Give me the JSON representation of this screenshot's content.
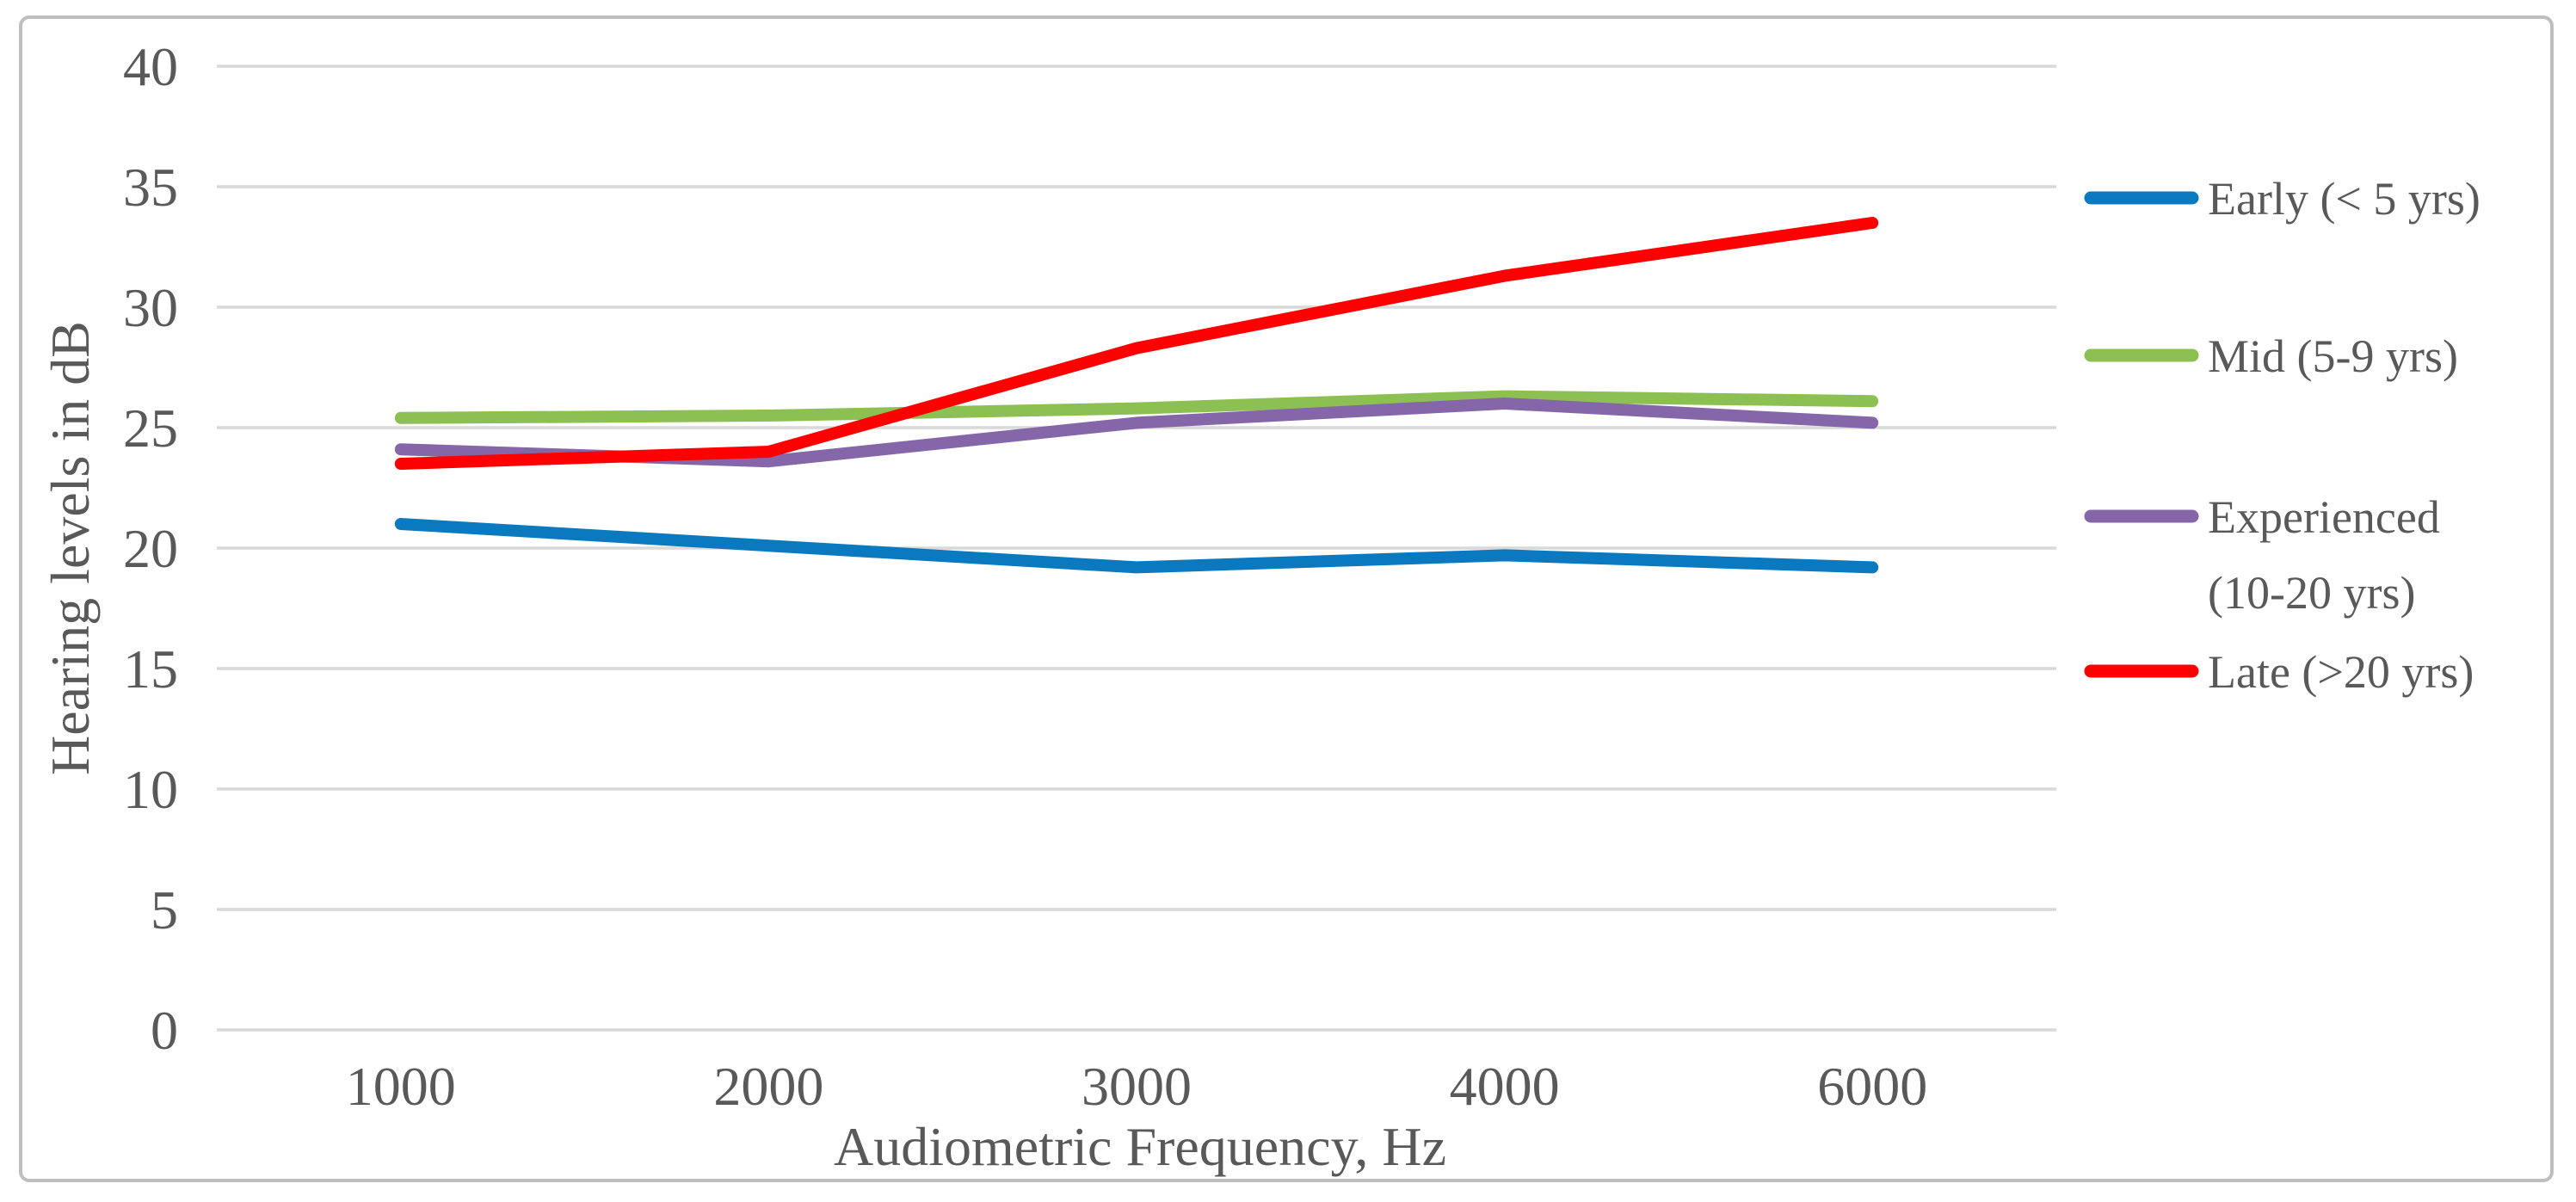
{
  "figure": {
    "background_color": "#FFFFFF",
    "border_color": "#BFBFBF",
    "text_color": "#595959",
    "gridline_color": "#D9D9D9"
  },
  "chart_data": {
    "type": "line",
    "title": "",
    "xlabel": "Audiometric Frequency, Hz",
    "ylabel": "Hearing levels in dB",
    "categories": [
      "1000",
      "2000",
      "3000",
      "4000",
      "6000"
    ],
    "ylim": [
      0,
      40
    ],
    "y_step": 5,
    "y_tick_labels": [
      "0",
      "5",
      "10",
      "15",
      "20",
      "25",
      "30",
      "35",
      "40"
    ],
    "grid": "horizontal",
    "legend_position": "right",
    "series": [
      {
        "name": "Early (< 5 yrs)",
        "legend_lines": [
          "Early (< 5 yrs)"
        ],
        "color": "#0B79BF",
        "values": [
          21.0,
          20.1,
          19.2,
          19.7,
          19.2
        ]
      },
      {
        "name": "Mid (5-9 yrs)",
        "legend_lines": [
          "Mid (5-9 yrs)"
        ],
        "color": "#8CC052",
        "values": [
          25.4,
          25.5,
          25.8,
          26.3,
          26.1
        ]
      },
      {
        "name": "Experienced (10-20 yrs)",
        "legend_lines": [
          "Experienced",
          "(10-20 yrs)"
        ],
        "color": "#8566A8",
        "values": [
          24.1,
          23.6,
          25.2,
          26.0,
          25.2
        ]
      },
      {
        "name": "Late (>20 yrs)",
        "legend_lines": [
          "Late (>20 yrs)"
        ],
        "color": "#FF0000",
        "values": [
          23.5,
          24.0,
          28.3,
          31.3,
          33.5
        ]
      }
    ]
  }
}
